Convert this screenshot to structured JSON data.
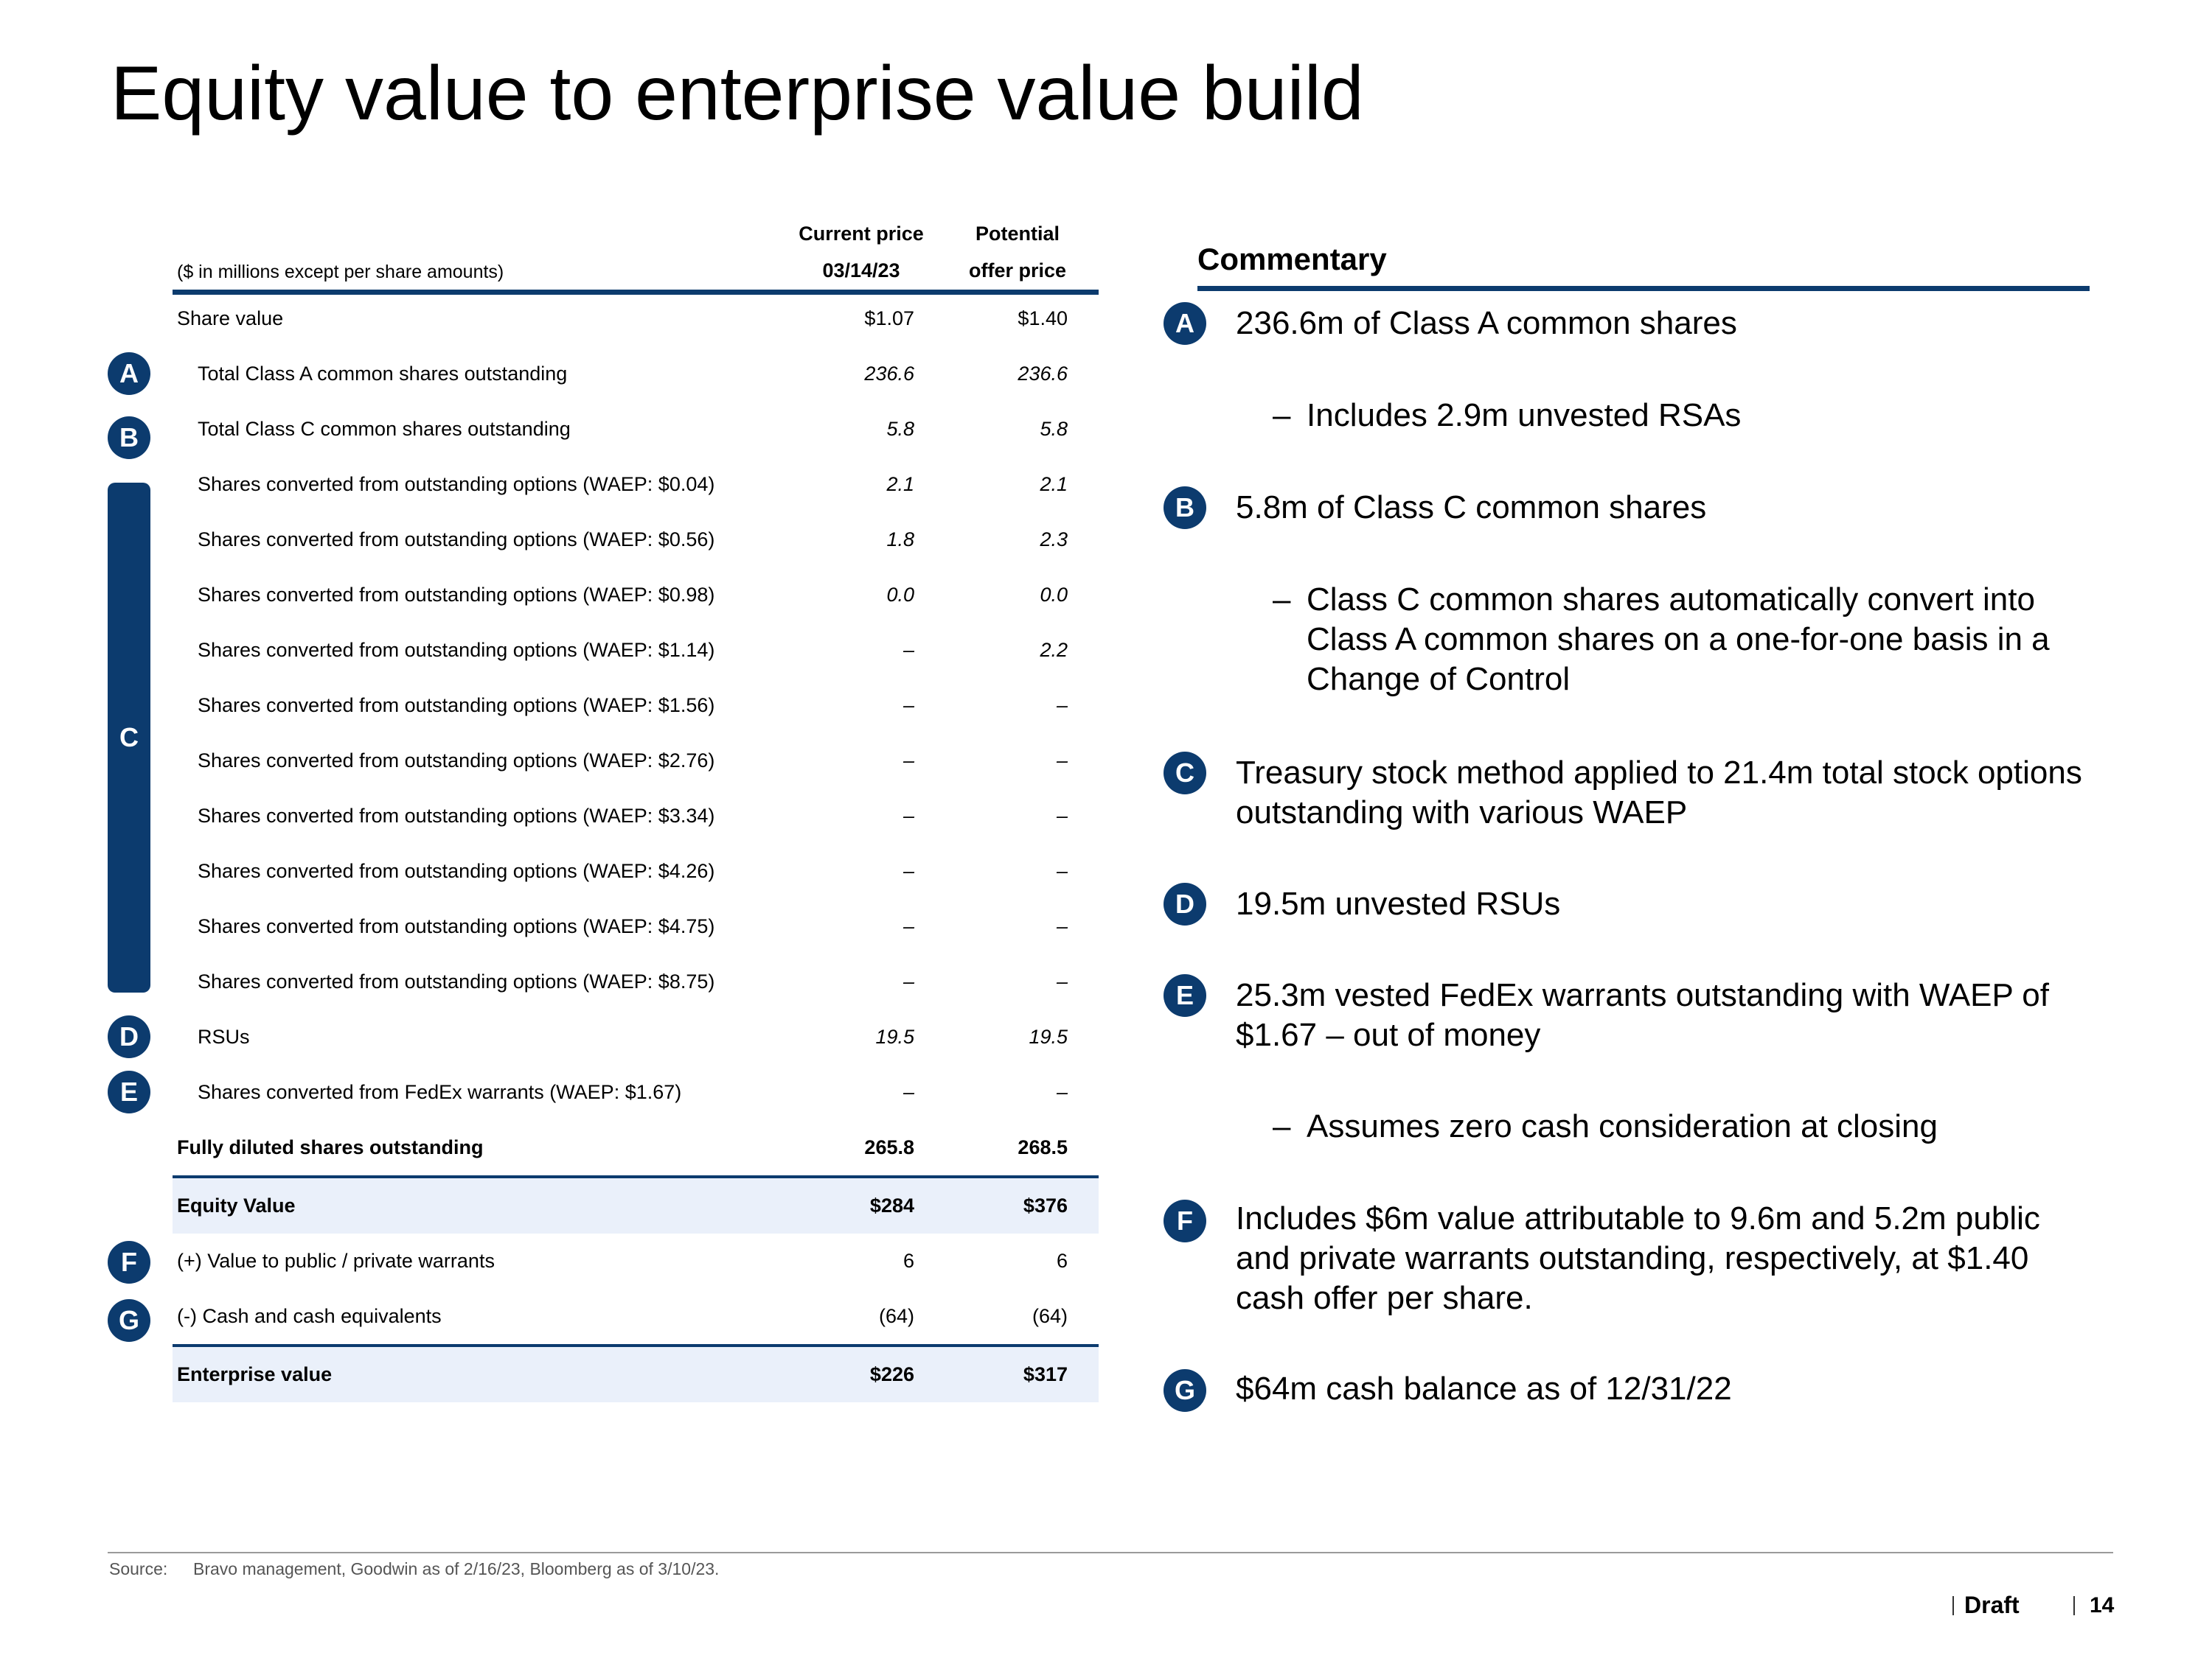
{
  "title": "Equity value to enterprise value build",
  "table": {
    "units_note": "($ in millions except per share amounts)",
    "col1_header": [
      "Current price",
      "03/14/23"
    ],
    "col2_header": [
      "Potential",
      "offer price"
    ],
    "rows": [
      {
        "label": "Share value",
        "v1": "$1.07",
        "v2": "$1.40"
      },
      {
        "label": "Total Class A common shares outstanding",
        "v1": "236.6",
        "v2": "236.6"
      },
      {
        "label": "Total Class C common shares outstanding",
        "v1": "5.8",
        "v2": "5.8"
      },
      {
        "label": "Shares converted from outstanding options (WAEP: $0.04)",
        "v1": "2.1",
        "v2": "2.1"
      },
      {
        "label": "Shares converted from outstanding options (WAEP: $0.56)",
        "v1": "1.8",
        "v2": "2.3"
      },
      {
        "label": "Shares converted from outstanding options (WAEP: $0.98)",
        "v1": "0.0",
        "v2": "0.0"
      },
      {
        "label": "Shares converted from outstanding options (WAEP: $1.14)",
        "v1": "–",
        "v2": "2.2"
      },
      {
        "label": "Shares converted from outstanding options (WAEP: $1.56)",
        "v1": "–",
        "v2": "–"
      },
      {
        "label": "Shares converted from outstanding options (WAEP: $2.76)",
        "v1": "–",
        "v2": "–"
      },
      {
        "label": "Shares converted from outstanding options (WAEP: $3.34)",
        "v1": "–",
        "v2": "–"
      },
      {
        "label": "Shares converted from outstanding options (WAEP: $4.26)",
        "v1": "–",
        "v2": "–"
      },
      {
        "label": "Shares converted from outstanding options (WAEP: $4.75)",
        "v1": "–",
        "v2": "–"
      },
      {
        "label": "Shares converted from outstanding options (WAEP: $8.75)",
        "v1": "–",
        "v2": "–"
      },
      {
        "label": "RSUs",
        "v1": "19.5",
        "v2": "19.5"
      },
      {
        "label": "Shares converted from FedEx warrants (WAEP: $1.67)",
        "v1": "–",
        "v2": "–"
      },
      {
        "label": "Fully diluted shares outstanding",
        "v1": "265.8",
        "v2": "268.5"
      },
      {
        "label": "Equity Value",
        "v1": "$284",
        "v2": "$376"
      },
      {
        "label": "(+) Value to public / private warrants",
        "v1": "6",
        "v2": "6"
      },
      {
        "label": "(-) Cash and cash equivalents",
        "v1": "(64)",
        "v2": "(64)"
      },
      {
        "label": "Enterprise value",
        "v1": "$226",
        "v2": "$317"
      }
    ]
  },
  "markers": {
    "a": "A",
    "b": "B",
    "c": "C",
    "d": "D",
    "e": "E",
    "f": "F",
    "g": "G"
  },
  "commentary": {
    "title": "Commentary",
    "a_main": "236.6m of Class A common shares",
    "a_sub": "Includes 2.9m unvested RSAs",
    "b_main": "5.8m of Class C common shares",
    "b_sub": "Class C common shares automatically convert into Class A common shares on a one-for-one basis in a Change of Control",
    "c_main": "Treasury stock method applied to 21.4m total stock options outstanding with various WAEP",
    "d_main": "19.5m unvested RSUs",
    "e_main": "25.3m vested FedEx warrants outstanding with WAEP of $1.67 – out of money",
    "e_sub": "Assumes zero cash consideration at closing",
    "f_main": "Includes $6m value attributable to 9.6m and 5.2m public and private warrants outstanding, respectively, at $1.40 cash offer per share.",
    "g_main": "$64m cash balance as of 12/31/22",
    "dash": "–"
  },
  "footer": {
    "source_label": "Source:",
    "source_text": "Bravo management, Goodwin as of 2/16/23, Bloomberg as of 3/10/23.",
    "draft": "Draft",
    "page": "14"
  },
  "colors": {
    "navy": "#0c3b6e",
    "shade": "#eaf0fa"
  }
}
